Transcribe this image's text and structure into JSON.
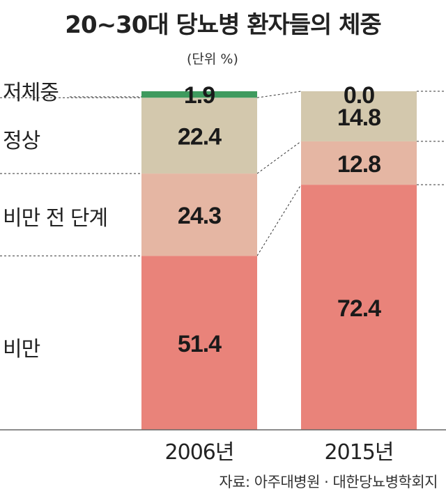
{
  "title": "20~30대 당뇨병 환자들의 체중",
  "unit_label": "(단위 %)",
  "source": "자료: 아주대병원 · 대한당뇨병학회지",
  "colors": {
    "underweight": "#3f9a5e",
    "normal": "#d3c8ad",
    "pre_obese": "#e5b6a3",
    "obese": "#e9837a"
  },
  "chart_data": {
    "type": "bar",
    "stacked": true,
    "categories": [
      "2006년",
      "2015년"
    ],
    "series": [
      {
        "name": "비만",
        "values": [
          51.4,
          72.4
        ]
      },
      {
        "name": "비만 전 단계",
        "values": [
          24.3,
          12.8
        ]
      },
      {
        "name": "정상",
        "values": [
          22.4,
          14.8
        ]
      },
      {
        "name": "저체중",
        "values": [
          1.9,
          0.0
        ]
      }
    ],
    "value_labels": [
      [
        "51.4",
        "24.3",
        "22.4",
        "1.9"
      ],
      [
        "72.4",
        "12.8",
        "14.8",
        "0.0"
      ]
    ],
    "ylim": [
      0,
      100
    ],
    "legend_position": "left"
  }
}
